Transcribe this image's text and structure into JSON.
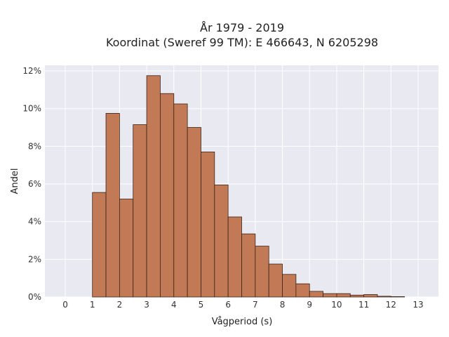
{
  "chart_data": {
    "type": "bar",
    "title_line1": "År 1979 - 2019",
    "title_line2": "Koordinat (Sweref 99 TM): E 466643, N 6205298",
    "xlabel": "Vågperiod (s)",
    "ylabel": "Andel",
    "xlim": [
      -0.75,
      13.75
    ],
    "ylim": [
      0,
      12.3
    ],
    "xticks": [
      0,
      1,
      2,
      3,
      4,
      5,
      6,
      7,
      8,
      9,
      10,
      11,
      12,
      13
    ],
    "yticks": [
      0,
      2,
      4,
      6,
      8,
      10,
      12
    ],
    "ytick_labels": [
      "0%",
      "2%",
      "4%",
      "6%",
      "8%",
      "10%",
      "12%"
    ],
    "bin_width": 0.5,
    "bin_starts": [
      1.0,
      1.5,
      2.0,
      2.5,
      3.0,
      3.5,
      4.0,
      4.5,
      5.0,
      5.5,
      6.0,
      6.5,
      7.0,
      7.5,
      8.0,
      8.5,
      9.0,
      9.5,
      10.0,
      10.5,
      11.0,
      11.5,
      12.0
    ],
    "values": [
      5.55,
      9.75,
      5.2,
      9.15,
      11.75,
      10.8,
      10.25,
      9.0,
      7.7,
      5.95,
      4.25,
      3.35,
      2.7,
      1.75,
      1.2,
      0.7,
      0.3,
      0.18,
      0.18,
      0.1,
      0.13,
      0.04,
      0.02
    ],
    "grid": true,
    "colors": {
      "bar_fill": "#c17a55",
      "bar_edge": "#3b2418",
      "plot_bg": "#e9e9f1",
      "grid": "#ffffff"
    }
  }
}
